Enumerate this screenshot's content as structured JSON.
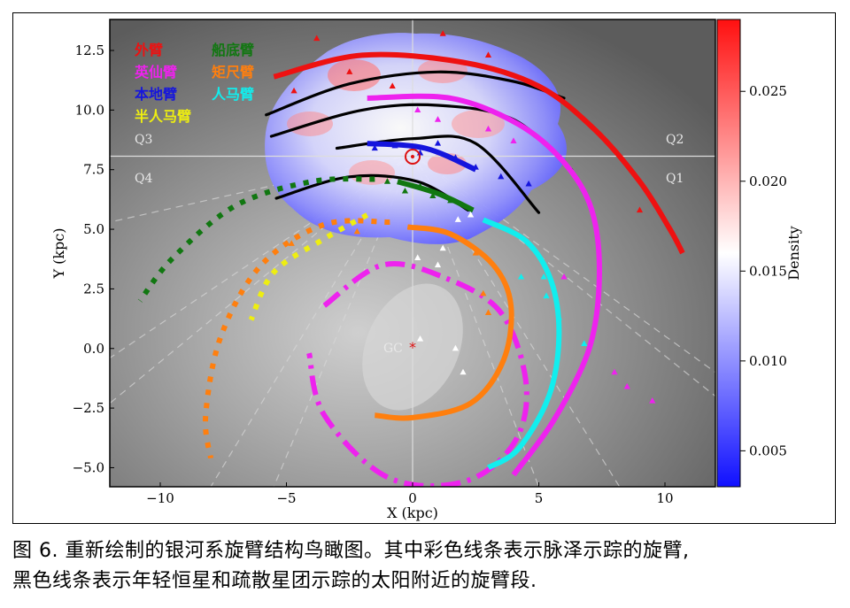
{
  "figure": {
    "caption_line1": "图 6. 重新绘制的银河系旋臂结构鸟瞰图。其中彩色线条表示脉泽示踪的旋臂,",
    "caption_line2": "黑色线条表示年轻恒星和疏散星团示踪的太阳附近的旋臂段."
  },
  "chart_data": {
    "type": "scatter",
    "xlabel": "X (kpc)",
    "ylabel": "Y (kpc)",
    "xlim": [
      -12,
      12
    ],
    "ylim": [
      -5.8,
      13.8
    ],
    "x_ticks": [
      -10,
      -5,
      0,
      5,
      10
    ],
    "x_tick_labels": [
      "−10",
      "−5",
      "0",
      "5",
      "10"
    ],
    "y_ticks": [
      -5.0,
      -2.5,
      0.0,
      2.5,
      5.0,
      7.5,
      10.0,
      12.5
    ],
    "y_tick_labels": [
      "−5.0",
      "−2.5",
      "0.0",
      "2.5",
      "5.0",
      "7.5",
      "10.0",
      "12.5"
    ],
    "colorbar": {
      "label": "Density",
      "range": [
        0.003,
        0.029
      ],
      "ticks": [
        0.005,
        0.01,
        0.015,
        0.02,
        0.025
      ],
      "tick_labels": [
        "0.005",
        "0.010",
        "0.015",
        "0.020",
        "0.025"
      ],
      "colors": [
        "#1010ff",
        "#ffffff",
        "#ff1010"
      ]
    },
    "quadrant_labels": [
      "Q1",
      "Q2",
      "Q3",
      "Q4"
    ],
    "sun": {
      "x": 0,
      "y": 8.15
    },
    "galactic_center": {
      "label": "GC",
      "x": 0,
      "y": 0
    },
    "legend": [
      {
        "name": "外臂",
        "color": "#ee1111"
      },
      {
        "name": "船底臂",
        "color": "#117711"
      },
      {
        "name": "英仙臂",
        "color": "#ee22ee"
      },
      {
        "name": "矩尺臂",
        "color": "#ff7f0e"
      },
      {
        "name": "本地臂",
        "color": "#1515dd"
      },
      {
        "name": "人马臂",
        "color": "#11eeee"
      },
      {
        "name": "半人马臂",
        "color": "#eeee11"
      }
    ],
    "arms": [
      {
        "name": "外臂",
        "color": "#ee1111",
        "style": "solid",
        "x": [
          -5.5,
          -2.0,
          2.0,
          5.0,
          7.2,
          9.0,
          10.2,
          10.7
        ],
        "y": [
          11.4,
          12.3,
          12.0,
          11.0,
          9.2,
          7.0,
          5.0,
          4.0
        ]
      },
      {
        "name": "英仙臂",
        "color": "#ee22ee",
        "style": "solid",
        "x": [
          -1.8,
          1.5,
          4.2,
          6.0,
          7.1,
          7.4,
          7.0,
          5.6,
          4.0
        ],
        "y": [
          10.5,
          10.5,
          9.4,
          7.8,
          5.8,
          3.0,
          0.0,
          -3.0,
          -5.3
        ]
      },
      {
        "name": "英仙臂",
        "color": "#ee22ee",
        "style": "dashed",
        "x": [
          -3.5,
          -1.2,
          1.2,
          3.5,
          4.5,
          4.0,
          2.0,
          -1.0,
          -3.5,
          -4.1
        ],
        "y": [
          1.8,
          3.5,
          3.0,
          1.5,
          -1.5,
          -4.0,
          -5.6,
          -5.4,
          -2.8,
          -0.2
        ]
      },
      {
        "name": "人马臂",
        "color": "#11eeee",
        "style": "solid",
        "x": [
          2.8,
          4.5,
          5.5,
          5.8,
          5.4,
          4.2,
          3.0
        ],
        "y": [
          5.4,
          4.5,
          2.8,
          0.5,
          -2.0,
          -4.2,
          -5.0
        ]
      },
      {
        "name": "矩尺臂",
        "color": "#ff7f0e",
        "style": "solid",
        "x": [
          -0.2,
          1.5,
          3.2,
          3.9,
          3.6,
          2.3,
          0.0,
          -1.5
        ],
        "y": [
          5.1,
          4.8,
          3.5,
          1.8,
          -0.5,
          -2.3,
          -2.9,
          -2.8
        ]
      },
      {
        "name": "矩尺臂",
        "color": "#ff7f0e",
        "style": "dotted",
        "x": [
          -0.9,
          -3.5,
          -6.0,
          -7.6,
          -8.2,
          -8.0
        ],
        "y": [
          5.3,
          5.2,
          3.5,
          0.5,
          -2.8,
          -4.6
        ]
      },
      {
        "name": "船底臂",
        "color": "#117711",
        "style": "solid",
        "x": [
          -0.6,
          1.0,
          2.4
        ],
        "y": [
          7.0,
          6.5,
          5.8
        ]
      },
      {
        "name": "船底臂",
        "color": "#117711",
        "style": "dotted",
        "x": [
          -1.5,
          -4.0,
          -7.0,
          -9.5,
          -10.8
        ],
        "y": [
          7.1,
          7.0,
          6.0,
          3.8,
          2.0
        ]
      },
      {
        "name": "半人马臂",
        "color": "#eeee11",
        "style": "dotted",
        "x": [
          -1.8,
          -3.5,
          -5.5,
          -6.4
        ],
        "y": [
          5.6,
          4.6,
          3.2,
          1.2
        ]
      },
      {
        "name": "本地臂",
        "color": "#1515dd",
        "style": "solid",
        "x": [
          -1.8,
          0.5,
          2.5
        ],
        "y": [
          8.6,
          8.4,
          7.5
        ]
      }
    ],
    "black_segments": [
      {
        "x": [
          -5.8,
          -2.5,
          1.0,
          4.0,
          6.0
        ],
        "y": [
          9.8,
          11.1,
          11.6,
          11.2,
          10.5
        ]
      },
      {
        "x": [
          -5.6,
          -2.0,
          1.0,
          4.0,
          6.3
        ],
        "y": [
          8.9,
          10.0,
          10.2,
          9.6,
          7.5
        ]
      },
      {
        "x": [
          -3.0,
          0.0,
          2.5,
          5.0
        ],
        "y": [
          8.4,
          8.8,
          8.6,
          5.7
        ]
      },
      {
        "x": [
          -5.4,
          -2.5,
          0.2,
          2.2
        ],
        "y": [
          6.3,
          7.2,
          7.0,
          5.8
        ]
      }
    ]
  }
}
